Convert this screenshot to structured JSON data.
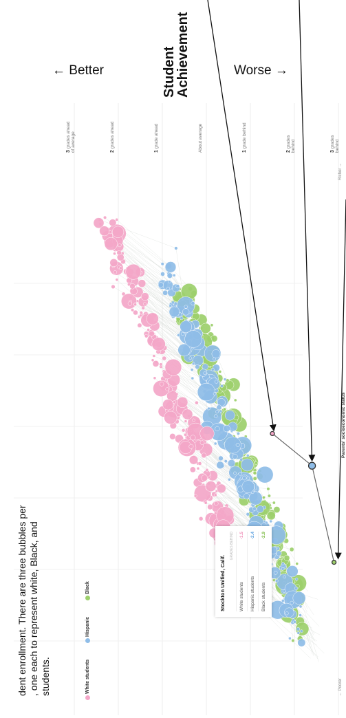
{
  "header": {
    "better_label": "← Better",
    "worse_label": "Worse →",
    "title_line1": "Student",
    "title_line2": "Achievement"
  },
  "caption": {
    "line1": "dent enrollment. There are three bubbles per",
    "line2": ", one each to represent white, Black, and",
    "line3": "students."
  },
  "legend": {
    "items": [
      {
        "label": "White students",
        "color": "#f4a7c8"
      },
      {
        "label": "Hispanic",
        "color": "#8fbde8"
      },
      {
        "label": "Black",
        "color": "#9dd06c"
      }
    ]
  },
  "tooltip": {
    "title": "Stockton Unified, Calif.",
    "subtitle": "GRADES BEHIND",
    "rows": [
      {
        "label": "White students",
        "value": "-1.5",
        "color": "#f08fb8"
      },
      {
        "label": "Hispanic students",
        "value": "-2.4",
        "color": "#5fa3e0"
      },
      {
        "label": "Black students",
        "value": "-2.9",
        "color": "#7dbb45"
      }
    ]
  },
  "chart_data": {
    "type": "scatter",
    "title": "",
    "xlabel": "Parents' socioeconomic status",
    "x_axis_left_label": "← Poorer",
    "x_axis_right_label": "Richer →",
    "ylabel": "Student Achievement",
    "y_ticks": [
      {
        "value": 3,
        "bold": "3",
        "rest": "grades ahead of average"
      },
      {
        "value": 2,
        "bold": "2",
        "rest": "grades ahead"
      },
      {
        "value": 1,
        "bold": "1",
        "rest": "grade ahead"
      },
      {
        "value": 0,
        "bold": "",
        "rest": "About average"
      },
      {
        "value": -1,
        "bold": "1",
        "rest": "grade behind"
      },
      {
        "value": -2,
        "bold": "2",
        "rest": "grades behind"
      },
      {
        "value": -3,
        "bold": "3",
        "rest": "grades behind"
      }
    ],
    "ylim": [
      -3.5,
      3.5
    ],
    "xlim": [
      -4,
      3.5
    ],
    "series": [
      {
        "name": "White students",
        "color": "#f4a7c8",
        "group_center_x": 1.3,
        "group_center_y": 0.9
      },
      {
        "name": "Hispanic",
        "color": "#8fbde8",
        "group_center_x": 0.2,
        "group_center_y": -0.8
      },
      {
        "name": "Black",
        "color": "#9dd06c",
        "group_center_x": -0.5,
        "group_center_y": -1.3
      }
    ],
    "highlight": {
      "district": "Stockton Unified, Calif.",
      "points": [
        {
          "group": "White students",
          "x": -0.1,
          "y": -1.5
        },
        {
          "group": "Hispanic",
          "x": -0.55,
          "y": -2.4
        },
        {
          "group": "Black",
          "x": -1.9,
          "y": -2.9
        }
      ]
    }
  }
}
